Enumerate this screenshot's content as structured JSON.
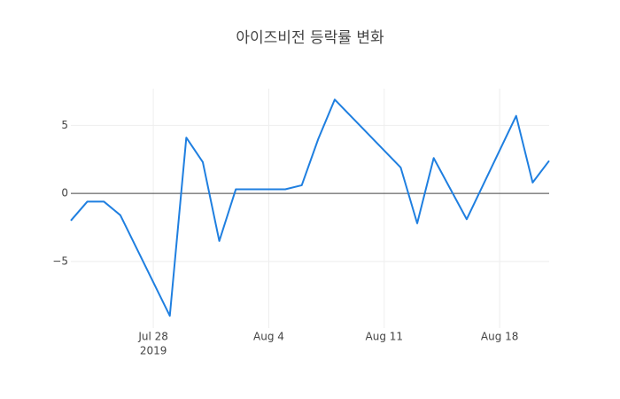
{
  "chart_data": {
    "type": "line",
    "title": "아이즈비전 등락률 변화",
    "x": [
      "2019-07-23",
      "2019-07-24",
      "2019-07-25",
      "2019-07-26",
      "2019-07-29",
      "2019-07-30",
      "2019-07-31",
      "2019-08-01",
      "2019-08-02",
      "2019-08-05",
      "2019-08-06",
      "2019-08-07",
      "2019-08-08",
      "2019-08-12",
      "2019-08-13",
      "2019-08-14",
      "2019-08-16",
      "2019-08-19",
      "2019-08-20",
      "2019-08-21"
    ],
    "series": [
      {
        "color": "#1f7fe0",
        "values": [
          -2.0,
          -0.6,
          -0.6,
          -1.6,
          -9.0,
          4.1,
          2.3,
          -3.5,
          0.3,
          0.3,
          0.6,
          4.0,
          6.9,
          1.9,
          -2.2,
          2.6,
          -1.9,
          5.7,
          0.8,
          2.4
        ]
      }
    ],
    "xlim": [
      "2019-07-23",
      "2019-08-21"
    ],
    "xticks": [
      {
        "value": "2019-07-28",
        "label": "Jul 28"
      },
      {
        "value": "2019-08-04",
        "label": "Aug 4"
      },
      {
        "value": "2019-08-11",
        "label": "Aug 11"
      },
      {
        "value": "2019-08-18",
        "label": "Aug 18"
      }
    ],
    "x_year_label": "2019",
    "ylim": [
      -9.9,
      7.7
    ],
    "yticks": [
      {
        "value": -5,
        "label": "−5"
      },
      0,
      5
    ],
    "grid": true,
    "zero_line": true
  }
}
